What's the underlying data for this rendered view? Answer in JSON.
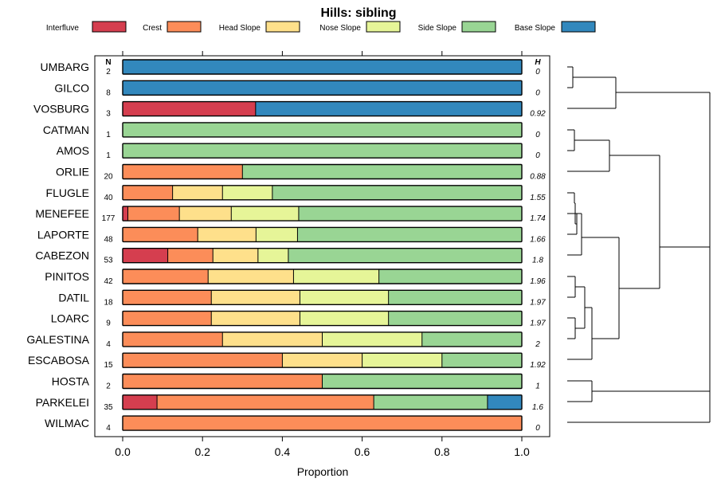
{
  "chart_data": {
    "type": "stacked-bar-horizontal",
    "title": "Hills: sibling",
    "xlabel": "Proportion",
    "xlim": [
      0,
      1
    ],
    "xticks": [
      "0.0",
      "0.2",
      "0.4",
      "0.6",
      "0.8",
      "1.0"
    ],
    "n_header": "N",
    "h_header": "H",
    "categories": [
      "Interfluve",
      "Crest",
      "Head Slope",
      "Nose Slope",
      "Side Slope",
      "Base Slope"
    ],
    "colors": {
      "Interfluve": "#D53E4F",
      "Crest": "#FC8D59",
      "Head Slope": "#FEE08B",
      "Nose Slope": "#E6F598",
      "Side Slope": "#99D594",
      "Base Slope": "#3288BD"
    },
    "rows": [
      {
        "label": "UMBARG",
        "n": "2",
        "h": "0",
        "values": [
          0,
          0,
          0,
          0,
          0,
          1
        ]
      },
      {
        "label": "GILCO",
        "n": "8",
        "h": "0",
        "values": [
          0,
          0,
          0,
          0,
          0,
          1
        ]
      },
      {
        "label": "VOSBURG",
        "n": "3",
        "h": "0.92",
        "values": [
          0.333,
          0,
          0,
          0,
          0,
          0.667
        ]
      },
      {
        "label": "CATMAN",
        "n": "1",
        "h": "0",
        "values": [
          0,
          0,
          0,
          0,
          1,
          0
        ]
      },
      {
        "label": "AMOS",
        "n": "1",
        "h": "0",
        "values": [
          0,
          0,
          0,
          0,
          1,
          0
        ]
      },
      {
        "label": "ORLIE",
        "n": "20",
        "h": "0.88",
        "values": [
          0,
          0.3,
          0,
          0,
          0.7,
          0
        ]
      },
      {
        "label": "FLUGLE",
        "n": "40",
        "h": "1.55",
        "values": [
          0,
          0.125,
          0.125,
          0.125,
          0.625,
          0
        ]
      },
      {
        "label": "MENEFEE",
        "n": "177",
        "h": "1.74",
        "values": [
          0.013,
          0.129,
          0.13,
          0.169,
          0.559,
          0
        ]
      },
      {
        "label": "LAPORTE",
        "n": "48",
        "h": "1.66",
        "values": [
          0,
          0.188,
          0.146,
          0.104,
          0.562,
          0
        ]
      },
      {
        "label": "CABEZON",
        "n": "53",
        "h": "1.8",
        "values": [
          0.113,
          0.113,
          0.113,
          0.076,
          0.585,
          0
        ]
      },
      {
        "label": "PINITOS",
        "n": "42",
        "h": "1.96",
        "values": [
          0,
          0.214,
          0.214,
          0.214,
          0.358,
          0
        ]
      },
      {
        "label": "DATIL",
        "n": "18",
        "h": "1.97",
        "values": [
          0,
          0.222,
          0.222,
          0.222,
          0.334,
          0
        ]
      },
      {
        "label": "LOARC",
        "n": "9",
        "h": "1.97",
        "values": [
          0,
          0.222,
          0.222,
          0.222,
          0.334,
          0
        ]
      },
      {
        "label": "GALESTINA",
        "n": "4",
        "h": "2",
        "values": [
          0,
          0.25,
          0.25,
          0.25,
          0.25,
          0
        ]
      },
      {
        "label": "ESCABOSA",
        "n": "15",
        "h": "1.92",
        "values": [
          0,
          0.4,
          0.2,
          0.2,
          0.2,
          0
        ]
      },
      {
        "label": "HOSTA",
        "n": "2",
        "h": "1",
        "values": [
          0,
          0.5,
          0,
          0,
          0.5,
          0
        ]
      },
      {
        "label": "PARKELEI",
        "n": "35",
        "h": "1.6",
        "values": [
          0.086,
          0.543,
          0,
          0,
          0.285,
          0.086
        ]
      },
      {
        "label": "WILMAC",
        "n": "4",
        "h": "0",
        "values": [
          0,
          1,
          0,
          0,
          0,
          0
        ]
      }
    ]
  }
}
